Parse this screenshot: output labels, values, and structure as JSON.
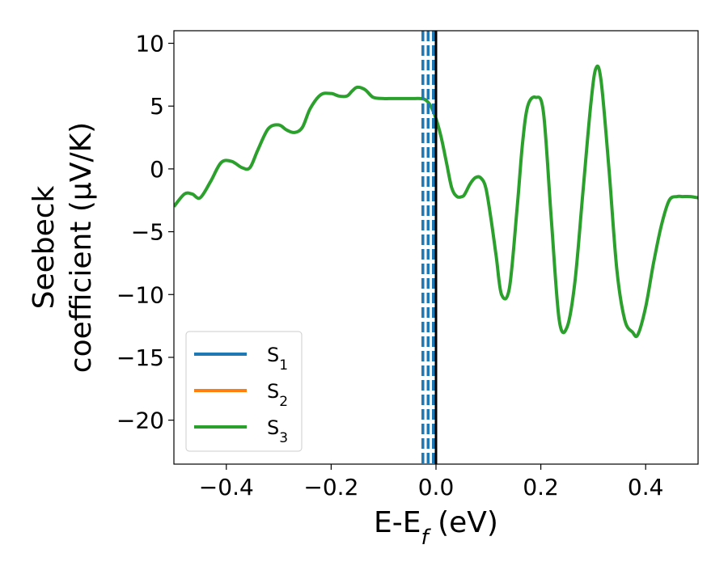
{
  "chart_data": {
    "type": "line",
    "xlabel": "E-E",
    "xlabel_sub": "f",
    "xlabel_unit": " (eV)",
    "ylabel_line1": "Seebeck",
    "ylabel_line2": "coefficient  (μV/K)",
    "xlim": [
      -0.5,
      0.5
    ],
    "ylim": [
      -23.5,
      11.0
    ],
    "xticks": [
      -0.4,
      -0.2,
      0.0,
      0.2,
      0.4
    ],
    "xtick_labels": [
      "−0.4",
      "−0.2",
      "0.0",
      "0.2",
      "0.4"
    ],
    "yticks": [
      10,
      5,
      0,
      -5,
      -10,
      -15,
      -20
    ],
    "ytick_labels": [
      "10",
      "5",
      "0",
      "−5",
      "−10",
      "−15",
      "−20"
    ],
    "grid": false,
    "legend_position": "lower-left",
    "vertical_lines": [
      {
        "x": -0.025,
        "style": "dashed",
        "color": "#1f77b4"
      },
      {
        "x": -0.015,
        "style": "dashed",
        "color": "#1f77b4"
      },
      {
        "x": -0.005,
        "style": "dashed",
        "color": "#1f77b4"
      },
      {
        "x": 0.0,
        "style": "solid",
        "color": "#000000"
      }
    ],
    "series": [
      {
        "name": "S",
        "sub": "1",
        "color": "#1f77b4",
        "x": [],
        "y": []
      },
      {
        "name": "S",
        "sub": "2",
        "color": "#ff7f0e",
        "x": [],
        "y": []
      },
      {
        "name": "S",
        "sub": "3",
        "color": "#2ca02c",
        "x": [
          -0.5,
          -0.48,
          -0.465,
          -0.45,
          -0.43,
          -0.41,
          -0.39,
          -0.37,
          -0.355,
          -0.34,
          -0.32,
          -0.3,
          -0.285,
          -0.27,
          -0.255,
          -0.24,
          -0.22,
          -0.2,
          -0.185,
          -0.17,
          -0.16,
          -0.15,
          -0.135,
          -0.12,
          -0.1,
          -0.09,
          -0.075,
          -0.06,
          -0.045,
          -0.03,
          -0.02,
          -0.01,
          0.0,
          0.01,
          0.02,
          0.03,
          0.04,
          0.05,
          0.055,
          0.065,
          0.075,
          0.085,
          0.095,
          0.105,
          0.115,
          0.125,
          0.14,
          0.155,
          0.165,
          0.175,
          0.19,
          0.205,
          0.22,
          0.235,
          0.25,
          0.265,
          0.28,
          0.295,
          0.305,
          0.315,
          0.33,
          0.345,
          0.36,
          0.375,
          0.385,
          0.4,
          0.415,
          0.43,
          0.445,
          0.46,
          0.47,
          0.485,
          0.5
        ],
        "y": [
          -3.0,
          -2.0,
          -2.0,
          -2.3,
          -1.0,
          0.5,
          0.6,
          0.1,
          0.1,
          1.5,
          3.2,
          3.5,
          3.1,
          2.9,
          3.3,
          4.8,
          5.9,
          6.0,
          5.8,
          5.8,
          6.2,
          6.5,
          6.3,
          5.7,
          5.6,
          5.6,
          5.6,
          5.6,
          5.6,
          5.6,
          5.5,
          5.0,
          4.0,
          2.5,
          0.5,
          -1.5,
          -2.2,
          -2.2,
          -2.0,
          -1.2,
          -0.7,
          -0.7,
          -1.5,
          -4.0,
          -7.0,
          -10.0,
          -9.5,
          -3.0,
          2.0,
          5.0,
          5.7,
          4.5,
          -4.0,
          -12.0,
          -12.6,
          -9.0,
          -2.0,
          5.0,
          8.0,
          7.0,
          0.0,
          -8.0,
          -12.0,
          -13.0,
          -13.2,
          -11.0,
          -7.5,
          -4.5,
          -2.5,
          -2.2,
          -2.2,
          -2.2,
          -2.3
        ]
      }
    ]
  }
}
